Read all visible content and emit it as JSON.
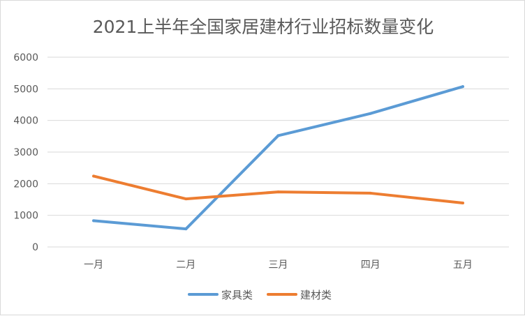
{
  "chart_data": {
    "type": "line",
    "title": "2021上半年全国家居建材行业招标数量变化",
    "categories": [
      "一月",
      "二月",
      "三月",
      "四月",
      "五月"
    ],
    "series": [
      {
        "name": "家具类",
        "color": "#5B9BD5",
        "values": [
          830,
          570,
          3520,
          4220,
          5070
        ]
      },
      {
        "name": "建材类",
        "color": "#ED7D31",
        "values": [
          2240,
          1520,
          1740,
          1700,
          1390
        ]
      }
    ],
    "yticks": [
      0,
      1000,
      2000,
      3000,
      4000,
      5000,
      6000
    ],
    "ylim": [
      0,
      6000
    ],
    "grid": true,
    "legend_position": "bottom",
    "gridline_color": "#d9d9d9"
  }
}
